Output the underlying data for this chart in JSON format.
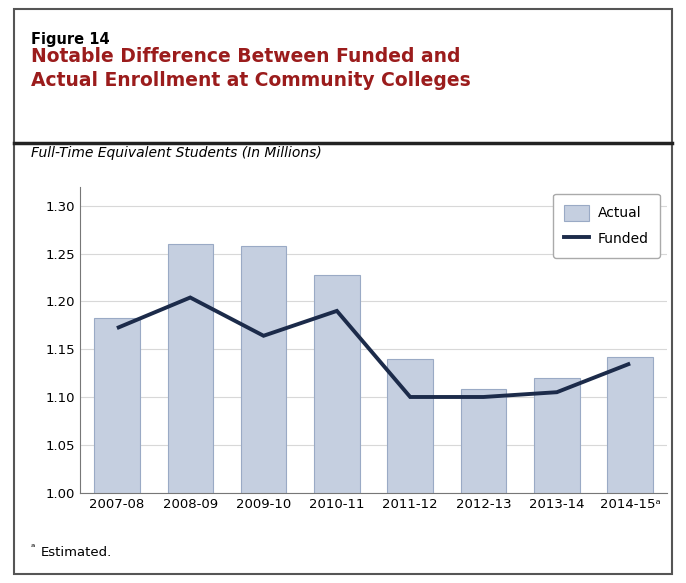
{
  "figure_label": "Figure 14",
  "title": "Notable Difference Between Funded and\nActual Enrollment at Community Colleges",
  "subtitle": "Full-Time Equivalent Students (In Millions)",
  "footnote": "a Estimated.",
  "footnote_superscript": "a",
  "categories": [
    "2007-08",
    "2008-09",
    "2009-10",
    "2010-11",
    "2011-12",
    "2012-13",
    "2013-14",
    "2014-15ᵃ"
  ],
  "actual_values": [
    1.183,
    1.26,
    1.258,
    1.228,
    1.14,
    1.108,
    1.12,
    1.142
  ],
  "funded_values": [
    1.172,
    1.204,
    1.164,
    1.19,
    1.1,
    1.1,
    1.105,
    1.135
  ],
  "bar_color": "#c5cfe0",
  "bar_edge_color": "#9aaac5",
  "line_color": "#1c2b4a",
  "ylim": [
    1.0,
    1.32
  ],
  "yticks": [
    1.0,
    1.05,
    1.1,
    1.15,
    1.2,
    1.25,
    1.3
  ],
  "title_color": "#9b1c1c",
  "figure_label_color": "#000000",
  "subtitle_color": "#000000",
  "background_color": "#ffffff",
  "border_color": "#555555",
  "separator_color": "#222222",
  "grid_color": "#d8d8d8"
}
